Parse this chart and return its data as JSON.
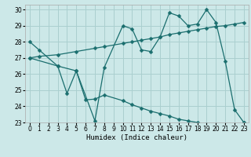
{
  "xlabel": "Humidex (Indice chaleur)",
  "bg_color": "#cce8e8",
  "grid_color": "#aacfcf",
  "line_color": "#1a6e6e",
  "xlim": [
    -0.5,
    23.5
  ],
  "ylim": [
    23,
    30.3
  ],
  "xticks": [
    0,
    1,
    2,
    3,
    4,
    5,
    6,
    7,
    8,
    9,
    10,
    11,
    12,
    13,
    14,
    15,
    16,
    17,
    18,
    19,
    20,
    21,
    22,
    23
  ],
  "yticks": [
    23,
    24,
    25,
    26,
    27,
    28,
    29,
    30
  ],
  "line1_x": [
    0,
    1,
    3,
    5,
    7,
    8,
    10,
    11,
    12,
    13,
    14,
    15,
    16,
    17,
    18,
    19,
    20,
    21,
    22,
    23
  ],
  "line1_y": [
    28.0,
    27.5,
    26.5,
    26.2,
    23.1,
    26.4,
    29.0,
    28.8,
    27.5,
    27.4,
    28.3,
    29.8,
    29.6,
    29.0,
    29.1,
    30.0,
    29.2,
    26.8,
    23.8,
    23.0
  ],
  "line2_x": [
    0,
    3,
    4,
    5,
    6,
    7,
    8,
    10,
    11,
    12,
    13,
    14,
    15,
    16,
    17,
    18,
    19,
    20,
    21,
    22,
    23
  ],
  "line2_y": [
    27.0,
    26.5,
    24.8,
    26.2,
    24.4,
    24.45,
    24.7,
    24.35,
    24.1,
    23.9,
    23.7,
    23.55,
    23.4,
    23.2,
    23.1,
    23.0,
    22.9,
    22.8,
    22.8,
    22.8,
    23.0
  ],
  "line3_x": [
    0,
    1,
    3,
    5,
    7,
    8,
    10,
    11,
    12,
    13,
    14,
    15,
    16,
    17,
    18,
    19,
    20,
    21,
    22,
    23
  ],
  "line3_y": [
    27.0,
    27.1,
    27.2,
    27.4,
    27.6,
    27.7,
    27.9,
    28.0,
    28.1,
    28.2,
    28.3,
    28.45,
    28.55,
    28.65,
    28.75,
    28.85,
    28.95,
    29.0,
    29.1,
    29.2
  ]
}
